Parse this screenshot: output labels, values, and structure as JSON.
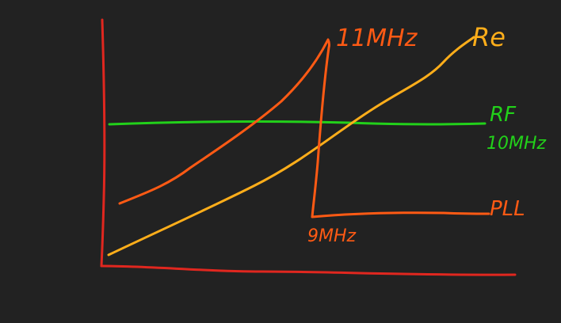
{
  "labels": {
    "label_11mhz": "11MHz",
    "label_re": "Re",
    "label_rf": "RF",
    "label_10mhz": "10MHz",
    "label_pll": "PLL",
    "label_9mhz": "9MHz"
  },
  "colors": {
    "background": "#222222",
    "axes": "#e0271f",
    "pll_curve": "#ff5a14",
    "re_curve": "#ffae1a",
    "rf_line": "#22d11a"
  }
}
